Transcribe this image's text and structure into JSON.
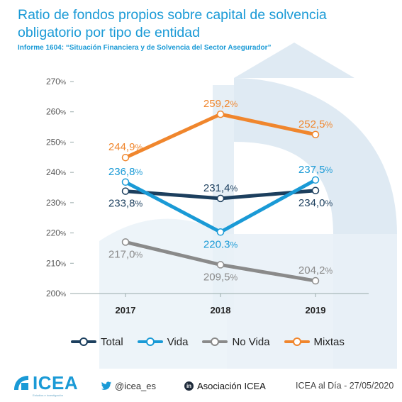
{
  "title": "Ratio de fondos propios sobre capital de solvencia obligatorio por tipo de entidad",
  "subtitle": "Informe 1604: “Situación Financiera y de Solvencia del Sector Asegurador”",
  "colors": {
    "total": "#1c3f5e",
    "vida": "#1a9ad6",
    "no_vida": "#8a8a8a",
    "mixtas": "#f0862d",
    "accent": "#1a9ad6"
  },
  "chart_data": {
    "type": "line",
    "title": "Ratio de fondos propios sobre capital de solvencia obligatorio por tipo de entidad",
    "xlabel": "",
    "ylabel": "",
    "categories": [
      "2017",
      "2018",
      "2019"
    ],
    "ylim": [
      200,
      270
    ],
    "yticks": [
      200,
      210,
      220,
      230,
      240,
      250,
      260,
      270
    ],
    "ytick_labels": [
      "200%",
      "210%",
      "220%",
      "230%",
      "240%",
      "250%",
      "260%",
      "270%"
    ],
    "grid": false,
    "legend_position": "bottom",
    "series": [
      {
        "name": "Total",
        "key": "total",
        "values": [
          233.8,
          231.4,
          234.0
        ],
        "labels": [
          "233,8%",
          "231,4%",
          "234,0%"
        ],
        "label_pos": [
          "below",
          "above",
          "below"
        ]
      },
      {
        "name": "Vida",
        "key": "vida",
        "values": [
          236.8,
          220.3,
          237.5
        ],
        "labels": [
          "236,8%",
          "220.3%",
          "237,5%"
        ],
        "label_pos": [
          "above",
          "below",
          "above"
        ]
      },
      {
        "name": "No Vida",
        "key": "no_vida",
        "values": [
          217.0,
          209.5,
          204.2
        ],
        "labels": [
          "217,0%",
          "209,5%",
          "204,2%"
        ],
        "label_pos": [
          "below",
          "below",
          "above"
        ]
      },
      {
        "name": "Mixtas",
        "key": "mixtas",
        "values": [
          244.9,
          259.2,
          252.5
        ],
        "labels": [
          "244,9%",
          "259,2%",
          "252,5%"
        ],
        "label_pos": [
          "above",
          "above",
          "above"
        ]
      }
    ]
  },
  "footer": {
    "logo_text": "ICEA",
    "logo_tagline": "Estudios e investigación",
    "twitter": "@icea_es",
    "linkedin": "Asociación ICEA",
    "date_text": "ICEA al Día - 27/05/2020"
  }
}
